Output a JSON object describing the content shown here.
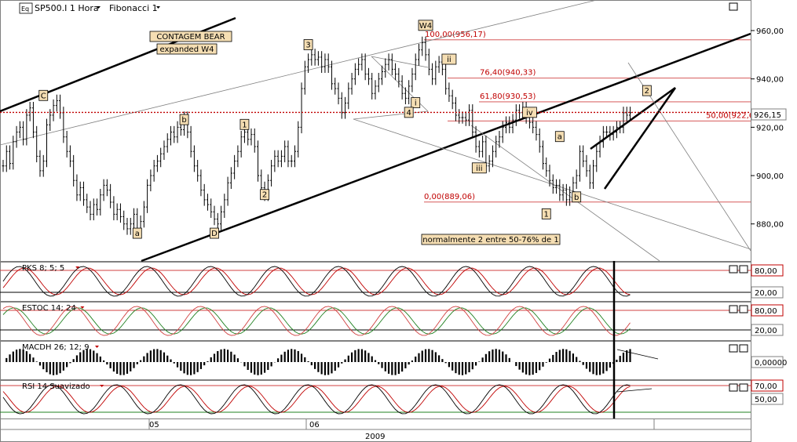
{
  "header": {
    "app_icon": "Eq",
    "symbol": "SP500.I",
    "timeframe": "1 Hora",
    "study": "Fibonacci 1"
  },
  "notes": {
    "contagem": "CONTAGEM BEAR",
    "expanded": "expanded W4",
    "normalmente": "normalmente 2 entre 50-76% de 1"
  },
  "price_axis": {
    "ticks": [
      "960,00",
      "940,00",
      "920,00",
      "900,00",
      "880,00"
    ],
    "current": "926,15"
  },
  "fibonacci": [
    {
      "label": "100,00(956,17)",
      "price": 956.17
    },
    {
      "label": "76,40(940,33)",
      "price": 940.33
    },
    {
      "label": "61,80(930,53)",
      "price": 930.53
    },
    {
      "label": "50,00(922,6",
      "price": 922.6
    },
    {
      "label": "0,00(889,06)",
      "price": 889.06
    }
  ],
  "waves": [
    {
      "t": "C",
      "i": 12,
      "p": 933
    },
    {
      "t": "b",
      "i": 54,
      "p": 923
    },
    {
      "t": "a",
      "i": 40,
      "p": 876
    },
    {
      "t": "D",
      "i": 63,
      "p": 876
    },
    {
      "t": "1",
      "i": 72,
      "p": 921
    },
    {
      "t": "2",
      "i": 78,
      "p": 892
    },
    {
      "t": "3",
      "i": 91,
      "p": 954
    },
    {
      "t": "W4",
      "i": 126,
      "p": 962
    },
    {
      "t": "ii",
      "i": 133,
      "p": 948
    },
    {
      "t": "i",
      "i": 123,
      "p": 930
    },
    {
      "t": "4",
      "i": 121,
      "p": 926
    },
    {
      "t": "iv",
      "i": 157,
      "p": 926
    },
    {
      "t": "iii",
      "i": 142,
      "p": 903
    },
    {
      "t": "a",
      "i": 166,
      "p": 916
    },
    {
      "t": "b",
      "i": 171,
      "p": 891
    },
    {
      "t": "1",
      "i": 162,
      "p": 884
    },
    {
      "t": "2",
      "i": 192,
      "p": 935
    }
  ],
  "indicators": [
    {
      "name": "PKS 8; 5; 5",
      "levels": [
        "80,00",
        "20,00"
      ]
    },
    {
      "name": "ESTOC 14; 24",
      "levels": [
        "80,00",
        "20,00"
      ]
    },
    {
      "name": "MACDH 26; 12; 9",
      "levels": [
        "0,00000"
      ]
    },
    {
      "name": "RSI 14 Suavizado",
      "levels": [
        "70,00",
        "50,00"
      ]
    }
  ],
  "time_axis": {
    "labels": [
      "05",
      "06"
    ],
    "year": "2009"
  },
  "chart_data": {
    "type": "line",
    "title": "SP500.I 1 Hora",
    "ylim": [
      865,
      972
    ],
    "series": [
      {
        "name": "SP500.I",
        "values": [
          904,
          910,
          905,
          914,
          918,
          920,
          915,
          925,
          928,
          918,
          908,
          902,
          906,
          921,
          925,
          929,
          931,
          926,
          916,
          910,
          906,
          898,
          892,
          895,
          890,
          887,
          884,
          888,
          886,
          892,
          896,
          894,
          889,
          884,
          886,
          883,
          880,
          878,
          880,
          884,
          878,
          881,
          887,
          896,
          900,
          904,
          906,
          909,
          912,
          915,
          918,
          916,
          920,
          919,
          924,
          918,
          910,
          904,
          900,
          894,
          890,
          888,
          885,
          882,
          880,
          885,
          890,
          897,
          901,
          906,
          910,
          916,
          918,
          915,
          917,
          912,
          900,
          895,
          892,
          898,
          904,
          908,
          906,
          908,
          912,
          906,
          906,
          910,
          920,
          936,
          945,
          948,
          950,
          948,
          949,
          945,
          948,
          945,
          938,
          936,
          932,
          926,
          930,
          936,
          940,
          944,
          946,
          948,
          942,
          940,
          934,
          937,
          940,
          943,
          946,
          948,
          944,
          942,
          939,
          934,
          932,
          937,
          942,
          948,
          952,
          955,
          950,
          944,
          940,
          945,
          947,
          944,
          936,
          933,
          930,
          925,
          924,
          924,
          923,
          927,
          918,
          912,
          910,
          914,
          904,
          906,
          910,
          914,
          916,
          920,
          922,
          920,
          923,
          927,
          926,
          928,
          924,
          922,
          920,
          917,
          912,
          905,
          902,
          898,
          895,
          896,
          892,
          894,
          890,
          893,
          897,
          900,
          910,
          906,
          902,
          897,
          904,
          910,
          914,
          918,
          918,
          917,
          918,
          920,
          920,
          926,
          925,
          926
        ]
      }
    ],
    "fib_levels": [
      956.17,
      940.33,
      930.53,
      922.6,
      889.06
    ]
  }
}
